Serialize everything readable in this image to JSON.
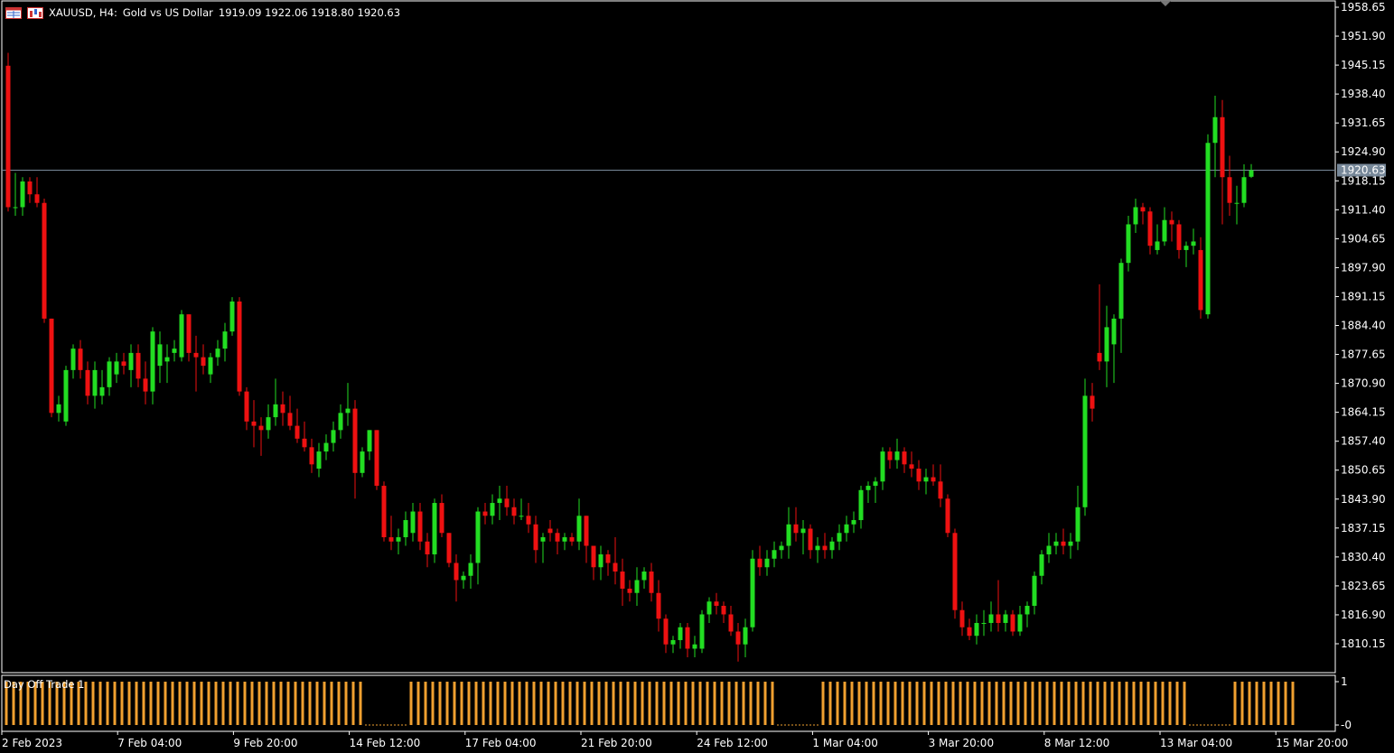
{
  "header": {
    "symbol": "XAUUSD, H4:",
    "description": "Gold vs US Dollar",
    "ohlc": "1919.09 1922.06 1918.80 1920.63",
    "icons": [
      "chart-window-icon",
      "chart-type-icon"
    ]
  },
  "price_axis": {
    "labels": [
      "1958.65",
      "1951.90",
      "1945.15",
      "1938.40",
      "1931.65",
      "1924.90",
      "1918.15",
      "1911.40",
      "1904.65",
      "1897.90",
      "1891.15",
      "1884.40",
      "1877.65",
      "1870.90",
      "1864.15",
      "1857.40",
      "1850.65",
      "1843.90",
      "1837.15",
      "1830.40",
      "1823.65",
      "1816.90",
      "1810.15"
    ],
    "current_price": "1920.63"
  },
  "time_axis": {
    "labels": [
      "2 Feb 2023",
      "7 Feb 04:00",
      "9 Feb 20:00",
      "14 Feb 12:00",
      "17 Feb 04:00",
      "21 Feb 20:00",
      "24 Feb 12:00",
      "1 Mar 04:00",
      "3 Mar 20:00",
      "8 Mar 12:00",
      "13 Mar 04:00",
      "15 Mar 20:00"
    ]
  },
  "indicator": {
    "name": "Day Off Trade 1",
    "axis_labels": [
      "1",
      "-0"
    ],
    "color": "#f0a030"
  },
  "colors": {
    "bull": "#22dd22",
    "bear": "#ee1111",
    "background": "#000000",
    "axis_text": "#ffffff",
    "price_line": "#778899",
    "price_box": "#778899"
  },
  "chart_data": {
    "type": "candlestick",
    "y_range": [
      1805,
      1960
    ],
    "candles": [
      {
        "o": 1945,
        "h": 1948,
        "l": 1911,
        "c": 1912
      },
      {
        "o": 1912,
        "h": 1920,
        "l": 1910,
        "c": 1912
      },
      {
        "o": 1912,
        "h": 1919,
        "l": 1910,
        "c": 1918
      },
      {
        "o": 1918,
        "h": 1919,
        "l": 1913,
        "c": 1915
      },
      {
        "o": 1915,
        "h": 1919,
        "l": 1912,
        "c": 1913
      },
      {
        "o": 1913,
        "h": 1914,
        "l": 1885,
        "c": 1886
      },
      {
        "o": 1886,
        "h": 1886,
        "l": 1863,
        "c": 1864
      },
      {
        "o": 1864,
        "h": 1868,
        "l": 1862,
        "c": 1866
      },
      {
        "o": 1862,
        "h": 1875,
        "l": 1861,
        "c": 1874
      },
      {
        "o": 1874,
        "h": 1880,
        "l": 1872,
        "c": 1879
      },
      {
        "o": 1879,
        "h": 1881,
        "l": 1872,
        "c": 1874
      },
      {
        "o": 1874,
        "h": 1876,
        "l": 1866,
        "c": 1868
      },
      {
        "o": 1868,
        "h": 1876,
        "l": 1865,
        "c": 1874
      },
      {
        "o": 1868,
        "h": 1874,
        "l": 1866,
        "c": 1870
      },
      {
        "o": 1870,
        "h": 1877,
        "l": 1868,
        "c": 1876
      },
      {
        "o": 1873,
        "h": 1878,
        "l": 1871,
        "c": 1876
      },
      {
        "o": 1876,
        "h": 1878,
        "l": 1873,
        "c": 1875
      },
      {
        "o": 1874,
        "h": 1880,
        "l": 1870,
        "c": 1878
      },
      {
        "o": 1878,
        "h": 1880,
        "l": 1870,
        "c": 1872
      },
      {
        "o": 1872,
        "h": 1876,
        "l": 1866,
        "c": 1869
      },
      {
        "o": 1869,
        "h": 1884,
        "l": 1866,
        "c": 1883
      },
      {
        "o": 1875,
        "h": 1883,
        "l": 1871,
        "c": 1880
      },
      {
        "o": 1876,
        "h": 1880,
        "l": 1871,
        "c": 1877
      },
      {
        "o": 1878,
        "h": 1881,
        "l": 1876,
        "c": 1879
      },
      {
        "o": 1877,
        "h": 1888,
        "l": 1876,
        "c": 1887
      },
      {
        "o": 1887,
        "h": 1887,
        "l": 1876,
        "c": 1878
      },
      {
        "o": 1878,
        "h": 1882,
        "l": 1869,
        "c": 1877
      },
      {
        "o": 1877,
        "h": 1880,
        "l": 1873,
        "c": 1875
      },
      {
        "o": 1873,
        "h": 1878,
        "l": 1871,
        "c": 1877
      },
      {
        "o": 1877,
        "h": 1881,
        "l": 1875,
        "c": 1879
      },
      {
        "o": 1879,
        "h": 1885,
        "l": 1876,
        "c": 1883
      },
      {
        "o": 1883,
        "h": 1891,
        "l": 1882,
        "c": 1890
      },
      {
        "o": 1890,
        "h": 1891,
        "l": 1868,
        "c": 1869
      },
      {
        "o": 1869,
        "h": 1870,
        "l": 1860,
        "c": 1862
      },
      {
        "o": 1862,
        "h": 1867,
        "l": 1856,
        "c": 1861
      },
      {
        "o": 1861,
        "h": 1863,
        "l": 1854,
        "c": 1860
      },
      {
        "o": 1860,
        "h": 1866,
        "l": 1858,
        "c": 1863
      },
      {
        "o": 1863,
        "h": 1872,
        "l": 1861,
        "c": 1866
      },
      {
        "o": 1866,
        "h": 1869,
        "l": 1861,
        "c": 1864
      },
      {
        "o": 1864,
        "h": 1868,
        "l": 1860,
        "c": 1861
      },
      {
        "o": 1861,
        "h": 1865,
        "l": 1857,
        "c": 1858
      },
      {
        "o": 1858,
        "h": 1862,
        "l": 1855,
        "c": 1856
      },
      {
        "o": 1856,
        "h": 1858,
        "l": 1850,
        "c": 1852
      },
      {
        "o": 1851,
        "h": 1857,
        "l": 1849,
        "c": 1855
      },
      {
        "o": 1855,
        "h": 1859,
        "l": 1853,
        "c": 1857
      },
      {
        "o": 1857,
        "h": 1862,
        "l": 1855,
        "c": 1860
      },
      {
        "o": 1860,
        "h": 1866,
        "l": 1858,
        "c": 1864
      },
      {
        "o": 1864,
        "h": 1871,
        "l": 1861,
        "c": 1865
      },
      {
        "o": 1865,
        "h": 1867,
        "l": 1844,
        "c": 1850
      },
      {
        "o": 1850,
        "h": 1856,
        "l": 1849,
        "c": 1855
      },
      {
        "o": 1855,
        "h": 1860,
        "l": 1853,
        "c": 1860
      },
      {
        "o": 1860,
        "h": 1860,
        "l": 1846,
        "c": 1847
      },
      {
        "o": 1847,
        "h": 1848,
        "l": 1834,
        "c": 1835
      },
      {
        "o": 1835,
        "h": 1840,
        "l": 1832,
        "c": 1834
      },
      {
        "o": 1834,
        "h": 1837,
        "l": 1831,
        "c": 1835
      },
      {
        "o": 1835,
        "h": 1841,
        "l": 1833,
        "c": 1839
      },
      {
        "o": 1836,
        "h": 1843,
        "l": 1834,
        "c": 1841
      },
      {
        "o": 1841,
        "h": 1843,
        "l": 1832,
        "c": 1834
      },
      {
        "o": 1834,
        "h": 1836,
        "l": 1828,
        "c": 1831
      },
      {
        "o": 1831,
        "h": 1844,
        "l": 1829,
        "c": 1843
      },
      {
        "o": 1843,
        "h": 1845,
        "l": 1835,
        "c": 1836
      },
      {
        "o": 1836,
        "h": 1836,
        "l": 1828,
        "c": 1829
      },
      {
        "o": 1829,
        "h": 1831,
        "l": 1820,
        "c": 1825
      },
      {
        "o": 1825,
        "h": 1827,
        "l": 1823,
        "c": 1826
      },
      {
        "o": 1826,
        "h": 1831,
        "l": 1823,
        "c": 1829
      },
      {
        "o": 1829,
        "h": 1842,
        "l": 1824,
        "c": 1841
      },
      {
        "o": 1841,
        "h": 1843,
        "l": 1838,
        "c": 1840
      },
      {
        "o": 1840,
        "h": 1845,
        "l": 1838,
        "c": 1843
      },
      {
        "o": 1843,
        "h": 1847,
        "l": 1839,
        "c": 1844
      },
      {
        "o": 1844,
        "h": 1847,
        "l": 1840,
        "c": 1842
      },
      {
        "o": 1842,
        "h": 1844,
        "l": 1838,
        "c": 1840
      },
      {
        "o": 1840,
        "h": 1844,
        "l": 1839,
        "c": 1840
      },
      {
        "o": 1840,
        "h": 1843,
        "l": 1836,
        "c": 1838
      },
      {
        "o": 1838,
        "h": 1840,
        "l": 1829,
        "c": 1832
      },
      {
        "o": 1834,
        "h": 1836,
        "l": 1829,
        "c": 1835
      },
      {
        "o": 1837,
        "h": 1839,
        "l": 1834,
        "c": 1836
      },
      {
        "o": 1836,
        "h": 1837,
        "l": 1831,
        "c": 1834
      },
      {
        "o": 1834,
        "h": 1836,
        "l": 1832,
        "c": 1835
      },
      {
        "o": 1835,
        "h": 1836,
        "l": 1833,
        "c": 1834
      },
      {
        "o": 1834,
        "h": 1844,
        "l": 1832,
        "c": 1840
      },
      {
        "o": 1840,
        "h": 1840,
        "l": 1829,
        "c": 1833
      },
      {
        "o": 1833,
        "h": 1833,
        "l": 1825,
        "c": 1828
      },
      {
        "o": 1828,
        "h": 1833,
        "l": 1825,
        "c": 1831
      },
      {
        "o": 1831,
        "h": 1832,
        "l": 1826,
        "c": 1829
      },
      {
        "o": 1829,
        "h": 1835,
        "l": 1824,
        "c": 1827
      },
      {
        "o": 1827,
        "h": 1830,
        "l": 1819,
        "c": 1823
      },
      {
        "o": 1823,
        "h": 1825,
        "l": 1820,
        "c": 1822
      },
      {
        "o": 1822,
        "h": 1828,
        "l": 1819,
        "c": 1825
      },
      {
        "o": 1825,
        "h": 1828,
        "l": 1823,
        "c": 1827
      },
      {
        "o": 1827,
        "h": 1829,
        "l": 1820,
        "c": 1822
      },
      {
        "o": 1822,
        "h": 1825,
        "l": 1813,
        "c": 1816
      },
      {
        "o": 1816,
        "h": 1817,
        "l": 1808,
        "c": 1810
      },
      {
        "o": 1810,
        "h": 1812,
        "l": 1808,
        "c": 1811
      },
      {
        "o": 1811,
        "h": 1815,
        "l": 1809,
        "c": 1814
      },
      {
        "o": 1814,
        "h": 1815,
        "l": 1807,
        "c": 1809
      },
      {
        "o": 1809,
        "h": 1812,
        "l": 1807,
        "c": 1810
      },
      {
        "o": 1809,
        "h": 1818,
        "l": 1808,
        "c": 1817
      },
      {
        "o": 1817,
        "h": 1821,
        "l": 1815,
        "c": 1820
      },
      {
        "o": 1820,
        "h": 1822,
        "l": 1817,
        "c": 1819
      },
      {
        "o": 1819,
        "h": 1820,
        "l": 1815,
        "c": 1817
      },
      {
        "o": 1817,
        "h": 1819,
        "l": 1812,
        "c": 1813
      },
      {
        "o": 1813,
        "h": 1815,
        "l": 1806,
        "c": 1810
      },
      {
        "o": 1810,
        "h": 1816,
        "l": 1807,
        "c": 1814
      },
      {
        "o": 1814,
        "h": 1832,
        "l": 1813,
        "c": 1830
      },
      {
        "o": 1830,
        "h": 1833,
        "l": 1826,
        "c": 1828
      },
      {
        "o": 1828,
        "h": 1832,
        "l": 1826,
        "c": 1830
      },
      {
        "o": 1830,
        "h": 1834,
        "l": 1828,
        "c": 1832
      },
      {
        "o": 1832,
        "h": 1834,
        "l": 1830,
        "c": 1833
      },
      {
        "o": 1833,
        "h": 1842,
        "l": 1830,
        "c": 1838
      },
      {
        "o": 1838,
        "h": 1842,
        "l": 1834,
        "c": 1836
      },
      {
        "o": 1836,
        "h": 1839,
        "l": 1831,
        "c": 1837
      },
      {
        "o": 1837,
        "h": 1838,
        "l": 1830,
        "c": 1832
      },
      {
        "o": 1832,
        "h": 1835,
        "l": 1829,
        "c": 1833
      },
      {
        "o": 1833,
        "h": 1836,
        "l": 1830,
        "c": 1832
      },
      {
        "o": 1832,
        "h": 1835,
        "l": 1830,
        "c": 1834
      },
      {
        "o": 1834,
        "h": 1838,
        "l": 1832,
        "c": 1836
      },
      {
        "o": 1836,
        "h": 1840,
        "l": 1834,
        "c": 1838
      },
      {
        "o": 1838,
        "h": 1841,
        "l": 1836,
        "c": 1839
      },
      {
        "o": 1839,
        "h": 1847,
        "l": 1837,
        "c": 1846
      },
      {
        "o": 1846,
        "h": 1848,
        "l": 1843,
        "c": 1847
      },
      {
        "o": 1847,
        "h": 1849,
        "l": 1843,
        "c": 1848
      },
      {
        "o": 1848,
        "h": 1856,
        "l": 1846,
        "c": 1855
      },
      {
        "o": 1855,
        "h": 1856,
        "l": 1851,
        "c": 1853
      },
      {
        "o": 1853,
        "h": 1858,
        "l": 1851,
        "c": 1855
      },
      {
        "o": 1855,
        "h": 1856,
        "l": 1850,
        "c": 1852
      },
      {
        "o": 1852,
        "h": 1855,
        "l": 1849,
        "c": 1851
      },
      {
        "o": 1851,
        "h": 1853,
        "l": 1846,
        "c": 1848
      },
      {
        "o": 1848,
        "h": 1851,
        "l": 1845,
        "c": 1849
      },
      {
        "o": 1849,
        "h": 1852,
        "l": 1847,
        "c": 1848
      },
      {
        "o": 1848,
        "h": 1852,
        "l": 1842,
        "c": 1844
      },
      {
        "o": 1844,
        "h": 1845,
        "l": 1835,
        "c": 1836
      },
      {
        "o": 1836,
        "h": 1837,
        "l": 1816,
        "c": 1818
      },
      {
        "o": 1818,
        "h": 1820,
        "l": 1812,
        "c": 1814
      },
      {
        "o": 1814,
        "h": 1816,
        "l": 1811,
        "c": 1812
      },
      {
        "o": 1812,
        "h": 1817,
        "l": 1810,
        "c": 1815
      },
      {
        "o": 1815,
        "h": 1818,
        "l": 1812,
        "c": 1815
      },
      {
        "o": 1815,
        "h": 1820,
        "l": 1813,
        "c": 1817
      },
      {
        "o": 1817,
        "h": 1825,
        "l": 1813,
        "c": 1815
      },
      {
        "o": 1815,
        "h": 1818,
        "l": 1813,
        "c": 1817
      },
      {
        "o": 1817,
        "h": 1818,
        "l": 1812,
        "c": 1813
      },
      {
        "o": 1813,
        "h": 1819,
        "l": 1812,
        "c": 1817
      },
      {
        "o": 1817,
        "h": 1820,
        "l": 1814,
        "c": 1819
      },
      {
        "o": 1819,
        "h": 1827,
        "l": 1817,
        "c": 1826
      },
      {
        "o": 1826,
        "h": 1832,
        "l": 1824,
        "c": 1831
      },
      {
        "o": 1831,
        "h": 1836,
        "l": 1829,
        "c": 1833
      },
      {
        "o": 1833,
        "h": 1836,
        "l": 1831,
        "c": 1834
      },
      {
        "o": 1834,
        "h": 1837,
        "l": 1831,
        "c": 1833
      },
      {
        "o": 1833,
        "h": 1836,
        "l": 1830,
        "c": 1834
      },
      {
        "o": 1834,
        "h": 1847,
        "l": 1832,
        "c": 1842
      },
      {
        "o": 1842,
        "h": 1872,
        "l": 1840,
        "c": 1868
      },
      {
        "o": 1868,
        "h": 1871,
        "l": 1862,
        "c": 1865
      },
      {
        "o": 1878,
        "h": 1894,
        "l": 1874,
        "c": 1876
      },
      {
        "o": 1876,
        "h": 1889,
        "l": 1870,
        "c": 1884
      },
      {
        "o": 1880,
        "h": 1887,
        "l": 1871,
        "c": 1886
      },
      {
        "o": 1886,
        "h": 1900,
        "l": 1878,
        "c": 1899
      },
      {
        "o": 1899,
        "h": 1910,
        "l": 1897,
        "c": 1908
      },
      {
        "o": 1908,
        "h": 1914,
        "l": 1906,
        "c": 1912
      },
      {
        "o": 1912,
        "h": 1913,
        "l": 1908,
        "c": 1911
      },
      {
        "o": 1911,
        "h": 1912,
        "l": 1901,
        "c": 1903
      },
      {
        "o": 1902,
        "h": 1908,
        "l": 1901,
        "c": 1904
      },
      {
        "o": 1904,
        "h": 1912,
        "l": 1903,
        "c": 1909
      },
      {
        "o": 1909,
        "h": 1911,
        "l": 1904,
        "c": 1908
      },
      {
        "o": 1908,
        "h": 1909,
        "l": 1900,
        "c": 1902
      },
      {
        "o": 1902,
        "h": 1904,
        "l": 1898,
        "c": 1903
      },
      {
        "o": 1903,
        "h": 1907,
        "l": 1901,
        "c": 1904
      },
      {
        "o": 1902,
        "h": 1905,
        "l": 1886,
        "c": 1888
      },
      {
        "o": 1887,
        "h": 1929,
        "l": 1886,
        "c": 1927
      },
      {
        "o": 1927,
        "h": 1938,
        "l": 1919,
        "c": 1933
      },
      {
        "o": 1933,
        "h": 1937,
        "l": 1908,
        "c": 1919
      },
      {
        "o": 1919,
        "h": 1924,
        "l": 1910,
        "c": 1913
      },
      {
        "o": 1913,
        "h": 1917,
        "l": 1908,
        "c": 1913
      },
      {
        "o": 1913,
        "h": 1922,
        "l": 1912,
        "c": 1919
      },
      {
        "o": 1919.09,
        "h": 1922.06,
        "l": 1918.8,
        "c": 1920.63
      }
    ],
    "indicator": {
      "name": "Day Off Trade 1",
      "range": [
        0,
        1
      ],
      "values": [
        1,
        1,
        1,
        1,
        1,
        1,
        1,
        1,
        1,
        1,
        1,
        1,
        1,
        1,
        1,
        1,
        1,
        1,
        1,
        1,
        1,
        1,
        1,
        1,
        1,
        1,
        1,
        1,
        1,
        1,
        1,
        1,
        1,
        1,
        1,
        1,
        1,
        1,
        1,
        1,
        1,
        1,
        1,
        1,
        1,
        1,
        1,
        1,
        1,
        1,
        0,
        0,
        0,
        0,
        0,
        0,
        1,
        1,
        1,
        1,
        1,
        1,
        1,
        1,
        1,
        1,
        1,
        1,
        1,
        1,
        1,
        1,
        1,
        1,
        1,
        1,
        1,
        1,
        1,
        1,
        1,
        1,
        1,
        1,
        1,
        1,
        1,
        1,
        1,
        1,
        1,
        1,
        1,
        1,
        1,
        1,
        1,
        1,
        1,
        1,
        1,
        1,
        1,
        1,
        1,
        1,
        1,
        0,
        0,
        0,
        0,
        0,
        0,
        1,
        1,
        1,
        1,
        1,
        1,
        1,
        1,
        1,
        1,
        1,
        1,
        1,
        1,
        1,
        1,
        1,
        1,
        1,
        1,
        1,
        1,
        1,
        1,
        1,
        1,
        1,
        1,
        1,
        1,
        1,
        1,
        1,
        1,
        1,
        1,
        1,
        1,
        1,
        1,
        1,
        1,
        1,
        1,
        1,
        1,
        1,
        1,
        1,
        1,
        1,
        0,
        0,
        0,
        0,
        0,
        0,
        1,
        1,
        1,
        1,
        1,
        1,
        1,
        1,
        1
      ]
    }
  }
}
